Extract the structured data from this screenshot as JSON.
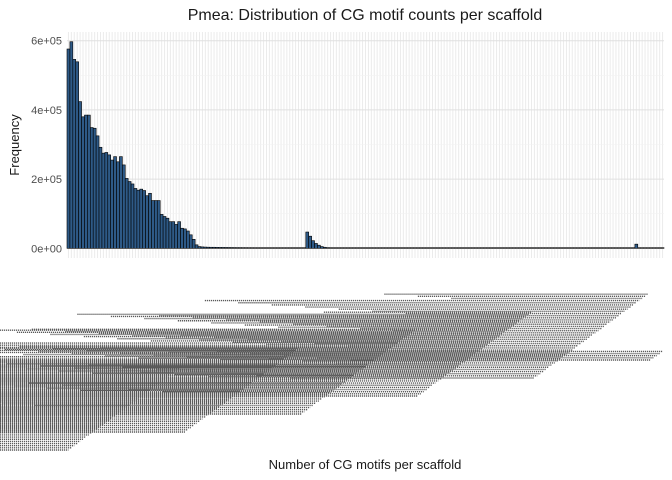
{
  "chart_data": {
    "type": "bar",
    "title": "Pmea: Distribution of CG motif counts per scaffold",
    "xlabel": "Number of CG motifs per scaffold",
    "ylabel": "Frequency",
    "ylim": [
      0,
      620000
    ],
    "yticks": [
      0,
      200000,
      400000,
      600000
    ],
    "ytick_labels": [
      "0e+00",
      "2e+05",
      "4e+05",
      "6e+05"
    ],
    "grid": true,
    "bar_fill": "#2e5a87",
    "bar_stroke": "#000000",
    "values": [
      576000,
      597000,
      546000,
      539000,
      424000,
      380000,
      385000,
      385000,
      349000,
      347000,
      325000,
      292000,
      275000,
      277000,
      270000,
      255000,
      265000,
      250000,
      265000,
      241000,
      202000,
      193000,
      186000,
      173000,
      168000,
      171000,
      167000,
      152000,
      159000,
      138000,
      138000,
      138000,
      98000,
      92000,
      87000,
      77000,
      77000,
      69000,
      77000,
      58000,
      56000,
      50000,
      39000,
      26000,
      10000,
      5000,
      4000,
      3500,
      3200,
      3000,
      3000,
      2800,
      2600,
      2500,
      2400,
      2300,
      2200,
      2100,
      2000,
      2000,
      1900,
      1900,
      1800,
      1800,
      1700,
      1700,
      1600,
      1600,
      1600,
      1500,
      1500,
      1500,
      1400,
      1400,
      1400,
      1300,
      1300,
      1300,
      1200,
      1200,
      1200,
      1200,
      47000,
      35000,
      22000,
      14000,
      9000,
      5000,
      3000,
      2000,
      1800,
      1600,
      1500,
      1400,
      1300,
      1200,
      1200,
      1100,
      1100,
      1100,
      1000,
      1000,
      1000,
      1000,
      1000,
      1000,
      1000,
      1000,
      1000,
      1000,
      1000,
      1000,
      1000,
      1000,
      1000,
      1000,
      1000,
      1000,
      1000,
      1000,
      1000,
      1000,
      1000,
      1000,
      1000,
      1000,
      1000,
      1000,
      1000,
      900,
      900,
      900,
      900,
      900,
      900,
      900,
      900,
      900,
      900,
      900,
      900,
      900,
      900,
      900,
      900,
      900,
      900,
      900,
      900,
      900,
      900,
      900,
      900,
      900,
      900,
      900,
      900,
      900,
      900,
      800,
      800,
      800,
      800,
      800,
      800,
      800,
      800,
      800,
      800,
      800,
      800,
      800,
      800,
      800,
      800,
      800,
      800,
      800,
      800,
      800,
      800,
      800,
      800,
      800,
      800,
      800,
      800,
      800,
      800,
      800,
      800,
      800,
      800,
      800,
      800,
      12000,
      800,
      800,
      800,
      800,
      800,
      800,
      800,
      800,
      800
    ]
  }
}
